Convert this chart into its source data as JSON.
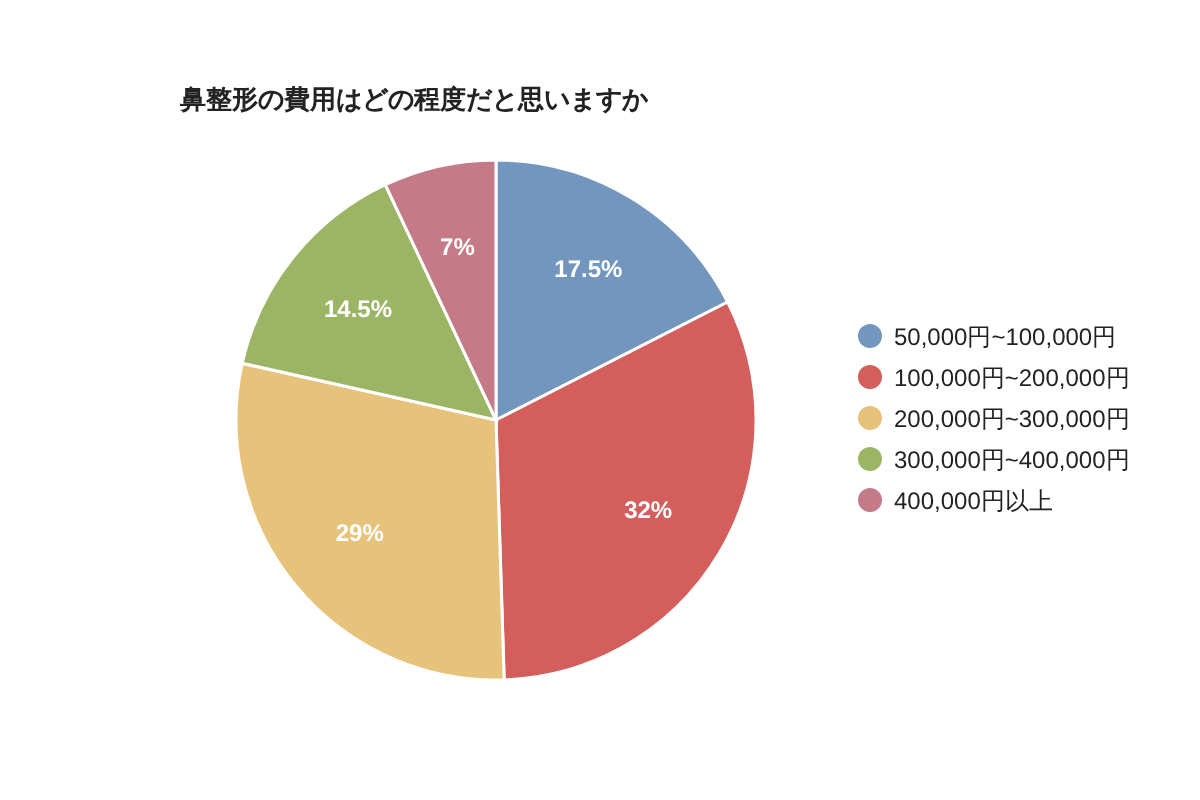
{
  "chart_data": {
    "type": "pie",
    "title": "鼻整形の費用はどの程度だと思いますか",
    "categories": [
      "50,000円~100,000円",
      "100,000円~200,000円",
      "200,000円~300,000円",
      "300,000円~400,000円",
      "400,000円以上"
    ],
    "values": [
      17.5,
      32,
      29,
      14.5,
      7
    ],
    "value_labels": [
      "17.5%",
      "32%",
      "29%",
      "14.5%",
      "7%"
    ],
    "colors": [
      "#7396bf",
      "#d35e5c",
      "#e6c27a",
      "#9bb565",
      "#c47a87"
    ],
    "legend": "right"
  }
}
